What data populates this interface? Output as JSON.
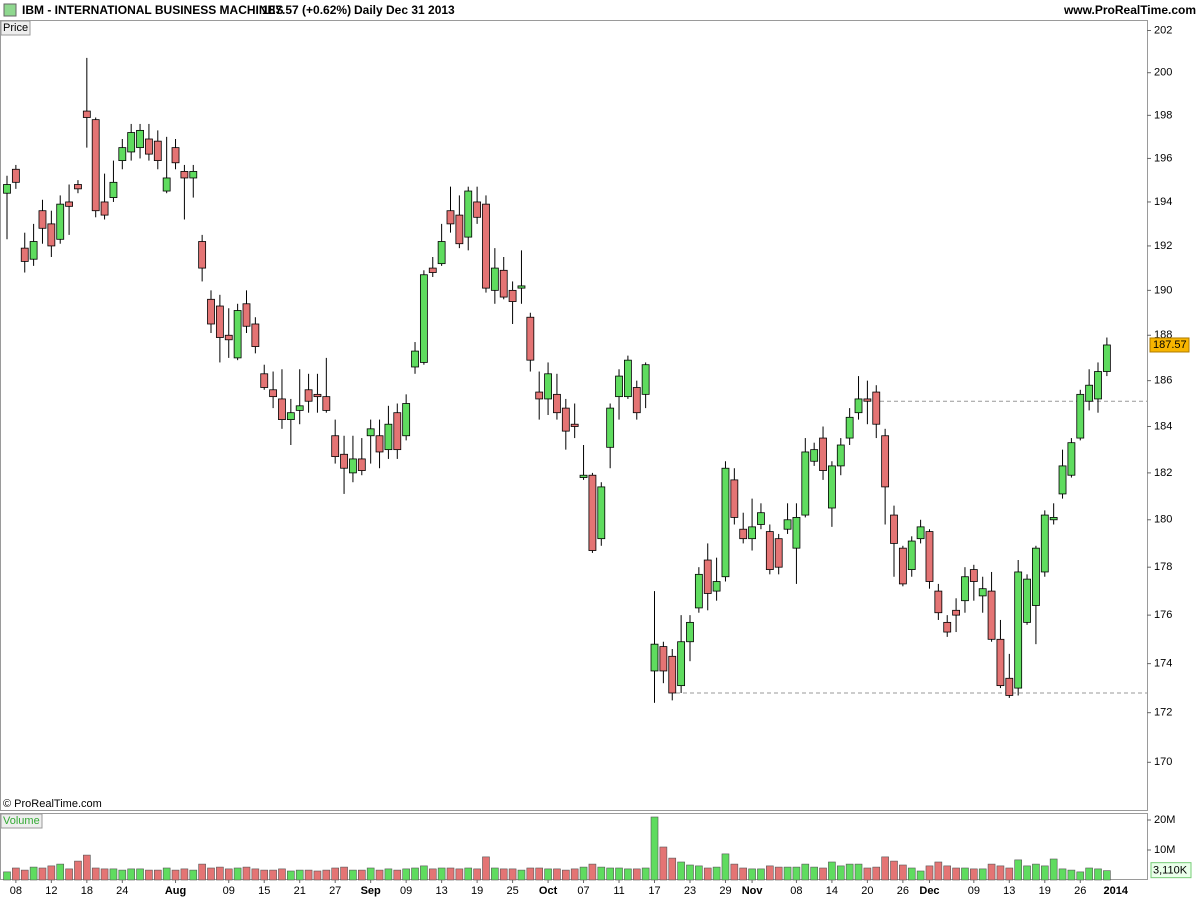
{
  "header": {
    "symbol": "IBM - INTERNATIONAL BUSINESS MACHINES",
    "quote": "187.57 (+0.62%)",
    "period": "Daily",
    "date": "Dec 31 2013",
    "site": "www.ProRealTime.com",
    "copyright": "© ProRealTime.com"
  },
  "chart_data": [
    {
      "type": "candlestick",
      "label": "Price",
      "log_scale": true,
      "up_color": "#5fdc5f",
      "down_color": "#e47474",
      "ylim": [
        168.1,
        202.5
      ],
      "yticks": [
        170,
        172,
        174,
        176,
        178,
        180,
        182,
        184,
        186,
        188,
        190,
        192,
        194,
        196,
        198,
        200,
        202
      ],
      "reference_lines": [
        185.1,
        172.8
      ],
      "open": [
        194.4,
        195.5,
        191.9,
        191.4,
        193.6,
        193.0,
        192.3,
        194.0,
        194.8,
        198.2,
        197.8,
        194.0,
        194.2,
        195.9,
        196.3,
        196.5,
        196.9,
        196.8,
        194.5,
        196.5,
        195.4,
        195.1,
        192.2,
        189.6,
        189.3,
        188.0,
        187.0,
        189.4,
        188.5,
        186.3,
        185.6,
        185.2,
        184.3,
        184.7,
        185.6,
        185.4,
        185.3,
        183.6,
        182.8,
        182.0,
        182.6,
        183.6,
        183.6,
        183.0,
        184.6,
        183.6,
        186.6,
        186.8,
        191.0,
        191.2,
        193.6,
        193.4,
        192.4,
        194.0,
        193.9,
        190.0,
        190.9,
        190.0,
        190.1,
        188.8,
        185.5,
        185.2,
        185.4,
        184.8,
        184.1,
        181.8,
        181.9,
        179.2,
        183.1,
        185.3,
        185.3,
        185.7,
        185.4,
        173.7,
        174.7,
        174.3,
        173.1,
        174.9,
        176.3,
        178.3,
        177.0,
        177.6,
        181.7,
        179.6,
        179.2,
        179.8,
        179.5,
        179.2,
        179.6,
        178.8,
        180.2,
        182.5,
        183.5,
        180.5,
        182.3,
        183.5,
        184.6,
        185.2,
        185.5,
        183.6,
        180.2,
        178.8,
        177.9,
        179.2,
        179.5,
        177.0,
        175.7,
        176.2,
        176.6,
        177.9,
        176.8,
        177.0,
        175.0,
        173.4,
        173.0,
        175.7,
        176.4,
        177.8,
        180.0,
        181.1,
        181.9,
        183.5,
        185.1,
        185.2,
        186.4
      ],
      "high": [
        195.2,
        195.7,
        192.6,
        193.0,
        194.1,
        193.6,
        194.3,
        194.8,
        195.0,
        200.7,
        197.9,
        195.3,
        195.9,
        196.9,
        197.6,
        197.6,
        197.6,
        197.3,
        197.0,
        196.9,
        195.7,
        195.7,
        192.5,
        190.0,
        189.8,
        189.2,
        189.4,
        190.0,
        188.8,
        186.7,
        186.4,
        186.5,
        185.2,
        186.5,
        186.3,
        186.3,
        187.0,
        184.3,
        183.6,
        183.6,
        183.5,
        184.3,
        184.3,
        184.9,
        185.0,
        185.4,
        187.7,
        190.9,
        191.5,
        193.0,
        194.7,
        194.3,
        194.7,
        194.7,
        194.3,
        191.9,
        191.5,
        190.4,
        191.8,
        189.0,
        186.4,
        186.8,
        186.3,
        185.2,
        185.0,
        183.2,
        182.0,
        181.6,
        185.0,
        186.5,
        187.1,
        186.0,
        186.8,
        177.0,
        174.9,
        174.6,
        176.0,
        176.0,
        178.0,
        179.0,
        178.4,
        182.5,
        182.2,
        180.3,
        180.9,
        180.7,
        179.8,
        179.4,
        180.7,
        180.7,
        183.5,
        183.3,
        184.0,
        182.5,
        183.5,
        184.8,
        186.2,
        186.0,
        185.8,
        183.9,
        180.6,
        178.9,
        179.3,
        180.0,
        179.6,
        177.3,
        176.0,
        176.7,
        178.0,
        178.1,
        177.6,
        177.8,
        175.8,
        174.4,
        178.3,
        177.7,
        178.9,
        180.4,
        180.7,
        183.0,
        183.5,
        185.6,
        186.5,
        186.8,
        187.9
      ],
      "low": [
        192.3,
        194.6,
        190.8,
        191.1,
        192.1,
        191.5,
        192.1,
        192.5,
        194.4,
        196.5,
        193.3,
        193.2,
        194.0,
        195.5,
        195.9,
        196.0,
        195.9,
        195.5,
        194.4,
        195.5,
        193.2,
        194.2,
        190.4,
        188.1,
        186.8,
        187.0,
        186.9,
        188.1,
        187.2,
        185.6,
        184.8,
        183.9,
        183.2,
        184.1,
        184.6,
        184.6,
        184.6,
        182.4,
        181.1,
        181.6,
        181.9,
        182.4,
        182.2,
        182.6,
        182.6,
        183.4,
        186.3,
        186.7,
        190.6,
        191.1,
        192.6,
        191.9,
        191.8,
        193.0,
        189.9,
        189.4,
        189.6,
        188.5,
        189.4,
        186.4,
        184.3,
        184.5,
        184.3,
        183.0,
        183.5,
        181.7,
        178.6,
        178.9,
        182.2,
        184.3,
        185.2,
        184.3,
        184.8,
        172.4,
        173.2,
        172.5,
        172.8,
        174.1,
        176.1,
        176.2,
        176.6,
        177.4,
        179.8,
        179.0,
        178.7,
        179.6,
        177.7,
        177.7,
        179.4,
        177.3,
        180.1,
        182.3,
        181.7,
        179.7,
        181.9,
        183.2,
        184.3,
        184.1,
        183.5,
        179.8,
        177.6,
        177.2,
        177.6,
        179.0,
        177.1,
        175.8,
        175.1,
        175.3,
        176.1,
        176.6,
        176.1,
        174.9,
        173.0,
        172.6,
        172.7,
        175.6,
        174.8,
        177.6,
        179.8,
        180.9,
        181.8,
        183.4,
        184.7,
        184.6,
        186.2
      ],
      "close": [
        194.8,
        194.9,
        191.3,
        192.2,
        192.8,
        192.0,
        193.9,
        193.8,
        194.6,
        197.9,
        193.6,
        193.4,
        194.9,
        196.5,
        197.2,
        197.3,
        196.2,
        195.9,
        195.1,
        195.8,
        195.1,
        195.4,
        191.0,
        188.5,
        187.9,
        187.8,
        189.1,
        188.4,
        187.5,
        185.7,
        185.3,
        184.3,
        184.6,
        184.9,
        185.1,
        185.3,
        184.7,
        182.7,
        182.2,
        182.6,
        182.1,
        183.9,
        182.9,
        184.1,
        183.0,
        185.0,
        187.3,
        190.7,
        190.8,
        192.2,
        193.0,
        192.1,
        194.5,
        193.3,
        190.1,
        191.0,
        189.7,
        189.5,
        190.2,
        186.9,
        185.2,
        186.3,
        184.6,
        183.8,
        184.0,
        181.9,
        178.7,
        181.4,
        184.8,
        186.2,
        186.9,
        184.6,
        186.7,
        174.8,
        173.7,
        172.8,
        174.9,
        175.7,
        177.7,
        176.9,
        177.4,
        182.2,
        180.1,
        179.2,
        179.7,
        180.3,
        177.9,
        178.0,
        180.0,
        180.1,
        182.9,
        183.0,
        182.1,
        182.3,
        183.2,
        184.4,
        185.2,
        185.1,
        184.1,
        181.4,
        179.0,
        177.3,
        179.1,
        179.7,
        177.4,
        176.1,
        175.3,
        176.0,
        177.6,
        177.4,
        177.1,
        175.0,
        173.1,
        172.7,
        177.8,
        177.5,
        178.8,
        180.2,
        180.1,
        182.3,
        183.3,
        185.4,
        185.8,
        186.4,
        187.57
      ]
    },
    {
      "type": "bar",
      "label": "Volume",
      "ylim": [
        0,
        22
      ],
      "yticks": [
        {
          "value": 10,
          "label": "10M"
        },
        {
          "value": 20,
          "label": "20M"
        }
      ],
      "categories": [
        null,
        "08",
        null,
        null,
        null,
        "12",
        null,
        null,
        null,
        "18",
        null,
        null,
        null,
        "24",
        null,
        null,
        null,
        null,
        null,
        "Aug",
        null,
        null,
        null,
        null,
        null,
        "09",
        null,
        null,
        null,
        "15",
        null,
        null,
        null,
        "21",
        null,
        null,
        null,
        "27",
        null,
        null,
        null,
        "Sep",
        null,
        null,
        null,
        "09",
        null,
        null,
        null,
        "13",
        null,
        null,
        null,
        "19",
        null,
        null,
        null,
        "25",
        null,
        null,
        null,
        "Oct",
        null,
        null,
        null,
        "07",
        null,
        null,
        null,
        "11",
        null,
        null,
        null,
        "17",
        null,
        null,
        null,
        "23",
        null,
        null,
        null,
        "29",
        null,
        null,
        "Nov",
        null,
        null,
        null,
        null,
        "08",
        null,
        null,
        null,
        "14",
        null,
        null,
        null,
        "20",
        null,
        null,
        null,
        "26",
        null,
        null,
        "Dec",
        null,
        null,
        null,
        null,
        "09",
        null,
        null,
        null,
        "13",
        null,
        null,
        null,
        "19",
        null,
        null,
        null,
        "26",
        null,
        null,
        null
      ],
      "x_end_label": "2014",
      "values": [
        2.7,
        4.0,
        3.3,
        4.3,
        4.0,
        4.7,
        5.3,
        3.7,
        6.3,
        8.3,
        4.0,
        3.7,
        3.7,
        3.3,
        3.7,
        3.7,
        3.3,
        3.3,
        4.0,
        3.3,
        3.7,
        3.3,
        5.3,
        4.0,
        4.3,
        3.7,
        4.0,
        4.3,
        3.7,
        3.3,
        3.3,
        3.7,
        3.0,
        3.3,
        3.3,
        3.0,
        3.3,
        4.0,
        4.3,
        3.3,
        3.3,
        4.0,
        3.3,
        3.7,
        3.3,
        3.7,
        4.0,
        4.7,
        3.7,
        4.0,
        4.0,
        3.7,
        4.0,
        3.7,
        7.7,
        4.0,
        3.7,
        3.7,
        3.3,
        4.0,
        4.0,
        3.7,
        3.7,
        3.3,
        3.7,
        4.3,
        5.3,
        4.3,
        4.0,
        4.0,
        3.7,
        3.7,
        4.0,
        21.0,
        11.0,
        7.3,
        6.0,
        5.0,
        4.7,
        4.0,
        4.3,
        8.7,
        5.3,
        4.0,
        3.7,
        3.7,
        4.7,
        4.3,
        4.3,
        4.3,
        5.3,
        4.3,
        4.0,
        6.0,
        4.7,
        5.3,
        5.3,
        4.0,
        4.3,
        7.7,
        6.3,
        5.0,
        4.0,
        3.0,
        4.7,
        6.0,
        4.7,
        4.0,
        4.0,
        3.7,
        3.7,
        5.3,
        4.7,
        4.0,
        6.7,
        4.7,
        5.3,
        4.7,
        7.0,
        3.7,
        3.3,
        2.7,
        4.0,
        3.7,
        3.11
      ],
      "value_labels": [
        null,
        null,
        null,
        null,
        null,
        null,
        null,
        null,
        null,
        null,
        null,
        null,
        null,
        null,
        null,
        null,
        null,
        null,
        null,
        null,
        null,
        null,
        null,
        null,
        null,
        null,
        null,
        null,
        null,
        null,
        null,
        null,
        null,
        null,
        null,
        null,
        null,
        null,
        null,
        null,
        null,
        null,
        null,
        null,
        null,
        null,
        null,
        null,
        null,
        null,
        null,
        null,
        null,
        null,
        null,
        null,
        null,
        null,
        null,
        null,
        null,
        null,
        null,
        null,
        null,
        null,
        null,
        null,
        null,
        null,
        null,
        null,
        null,
        null,
        null,
        null,
        null,
        null,
        null,
        null,
        null,
        null,
        null,
        null,
        null,
        null,
        null,
        null,
        null,
        null,
        null,
        null,
        null,
        null,
        null,
        null,
        null,
        null,
        null,
        null,
        null,
        null,
        null,
        null,
        null,
        null,
        null,
        null,
        null,
        null,
        null,
        null,
        null,
        null,
        null,
        null,
        null,
        null,
        null,
        null,
        null,
        null,
        null,
        null,
        "3,110K"
      ]
    }
  ]
}
